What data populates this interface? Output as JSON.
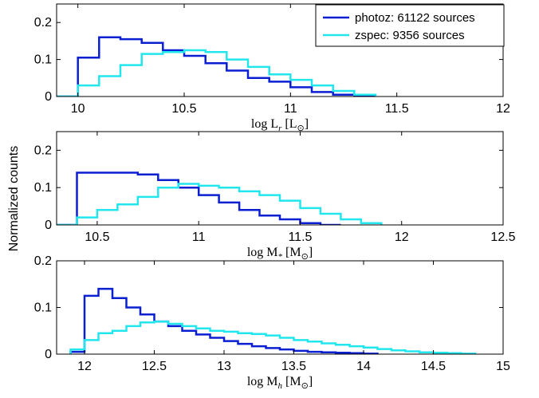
{
  "ylabel": "Normalized counts",
  "colors": {
    "photoz": "#0a1ed2",
    "zspec": "#22e6ee",
    "axis": "#000000"
  },
  "legend": {
    "placement": "top-right",
    "entries": [
      "photoz: 61122 sources",
      "zspec: 9356 sources"
    ]
  },
  "chart_data": [
    {
      "type": "histogram",
      "xlabel": {
        "text": "log L",
        "sub": "r",
        "unit": "[L",
        "unit_sub": "⊙",
        "close": "]"
      },
      "xlim": [
        9.9,
        12
      ],
      "ylim": [
        0,
        0.25
      ],
      "xticks": [
        10,
        10.5,
        11,
        11.5,
        12
      ],
      "xtick_labels": [
        "10",
        "10.5",
        "11",
        "11.5",
        "12"
      ],
      "yticks": [
        0,
        0.1,
        0.2
      ],
      "ytick_labels": [
        "0",
        "0.1",
        "0.2"
      ],
      "series": [
        {
          "name": "photoz: 61122 sources",
          "color_key": "photoz",
          "edges": [
            9.9,
            10.0,
            10.1,
            10.2,
            10.3,
            10.4,
            10.5,
            10.6,
            10.7,
            10.8,
            10.9,
            11.0,
            11.1,
            11.2,
            11.3,
            11.4
          ],
          "values": [
            0,
            0.105,
            0.16,
            0.155,
            0.145,
            0.125,
            0.11,
            0.09,
            0.07,
            0.05,
            0.04,
            0.025,
            0.012,
            0.005,
            0
          ]
        },
        {
          "name": "zspec: 9356 sources",
          "color_key": "zspec",
          "edges": [
            9.9,
            10.0,
            10.1,
            10.2,
            10.3,
            10.4,
            10.5,
            10.6,
            10.7,
            10.8,
            10.9,
            11.0,
            11.1,
            11.2,
            11.3,
            11.4
          ],
          "values": [
            0,
            0.03,
            0.055,
            0.085,
            0.115,
            0.12,
            0.125,
            0.12,
            0.1,
            0.08,
            0.06,
            0.045,
            0.03,
            0.015,
            0.005
          ]
        }
      ]
    },
    {
      "type": "histogram",
      "xlabel": {
        "text": "log M",
        "sub": "*",
        "unit": "[M",
        "unit_sub": "⊙",
        "close": "]"
      },
      "xlim": [
        10.3,
        12.5
      ],
      "ylim": [
        0,
        0.25
      ],
      "xticks": [
        10.5,
        11,
        11.5,
        12,
        12.5
      ],
      "xtick_labels": [
        "10.5",
        "11",
        "11.5",
        "12",
        "12.5"
      ],
      "yticks": [
        0,
        0.1,
        0.2
      ],
      "ytick_labels": [
        "0",
        "0.1",
        "0.2"
      ],
      "series": [
        {
          "name": "photoz: 61122 sources",
          "color_key": "photoz",
          "edges": [
            10.3,
            10.4,
            10.5,
            10.6,
            10.7,
            10.8,
            10.9,
            11.0,
            11.1,
            11.2,
            11.3,
            11.4,
            11.5,
            11.6,
            11.7
          ],
          "values": [
            0,
            0.14,
            0.14,
            0.14,
            0.135,
            0.12,
            0.1,
            0.08,
            0.06,
            0.04,
            0.025,
            0.015,
            0.005,
            0
          ]
        },
        {
          "name": "zspec: 9356 sources",
          "color_key": "zspec",
          "edges": [
            10.3,
            10.4,
            10.5,
            10.6,
            10.7,
            10.8,
            10.9,
            11.0,
            11.1,
            11.2,
            11.3,
            11.4,
            11.5,
            11.6,
            11.7,
            11.8,
            11.9
          ],
          "values": [
            0,
            0.02,
            0.04,
            0.055,
            0.075,
            0.1,
            0.11,
            0.105,
            0.1,
            0.09,
            0.08,
            0.065,
            0.045,
            0.03,
            0.015,
            0.005
          ]
        }
      ]
    },
    {
      "type": "histogram",
      "xlabel": {
        "text": "log M",
        "sub": "h",
        "unit": "[M",
        "unit_sub": "⊙",
        "close": "]"
      },
      "xlim": [
        11.8,
        15
      ],
      "ylim": [
        0,
        0.2
      ],
      "xticks": [
        12,
        12.5,
        13,
        13.5,
        14,
        14.5,
        15
      ],
      "xtick_labels": [
        "12",
        "12.5",
        "13",
        "13.5",
        "14",
        "14.5",
        "15"
      ],
      "yticks": [
        0,
        0.1,
        0.2
      ],
      "ytick_labels": [
        "0",
        "0.1",
        "0.2"
      ],
      "series": [
        {
          "name": "photoz: 61122 sources",
          "color_key": "photoz",
          "edges": [
            11.9,
            12.0,
            12.1,
            12.2,
            12.3,
            12.4,
            12.5,
            12.6,
            12.7,
            12.8,
            12.9,
            13.0,
            13.1,
            13.2,
            13.3,
            13.4,
            13.5,
            13.6,
            13.7,
            13.8,
            13.9,
            14.0,
            14.1
          ],
          "values": [
            0.005,
            0.125,
            0.14,
            0.12,
            0.1,
            0.085,
            0.07,
            0.06,
            0.05,
            0.042,
            0.035,
            0.028,
            0.022,
            0.017,
            0.013,
            0.01,
            0.007,
            0.005,
            0.004,
            0.003,
            0.002,
            0.001
          ]
        },
        {
          "name": "zspec: 9356 sources",
          "color_key": "zspec",
          "edges": [
            11.9,
            12.0,
            12.1,
            12.2,
            12.3,
            12.4,
            12.5,
            12.6,
            12.7,
            12.8,
            12.9,
            13.0,
            13.1,
            13.2,
            13.3,
            13.4,
            13.5,
            13.6,
            13.7,
            13.8,
            13.9,
            14.0,
            14.1,
            14.2,
            14.3,
            14.4,
            14.5,
            14.6,
            14.7,
            14.8
          ],
          "values": [
            0.01,
            0.03,
            0.045,
            0.05,
            0.06,
            0.068,
            0.07,
            0.065,
            0.06,
            0.055,
            0.05,
            0.048,
            0.045,
            0.043,
            0.04,
            0.035,
            0.03,
            0.027,
            0.023,
            0.02,
            0.017,
            0.014,
            0.011,
            0.008,
            0.006,
            0.004,
            0.003,
            0.002,
            0.001
          ]
        }
      ]
    }
  ]
}
